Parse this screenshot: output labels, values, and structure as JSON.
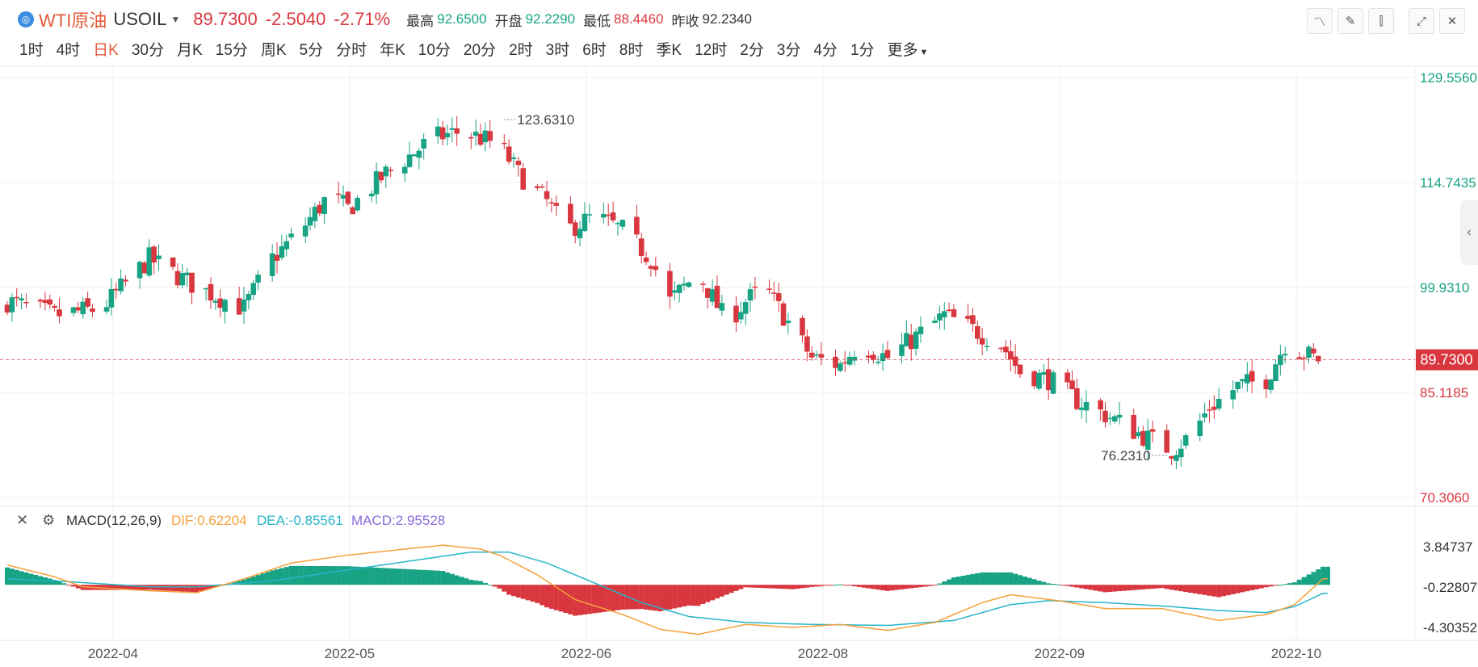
{
  "header": {
    "logo_icon": "globe-icon",
    "name": "WTI原油",
    "code": "USOIL",
    "last": "89.7300",
    "change": "-2.5040",
    "change_pct": "-2.71%",
    "high_label": "最高",
    "high": "92.6500",
    "open_label": "开盘",
    "open": "92.2290",
    "low_label": "最低",
    "low": "88.4460",
    "prev_label": "昨收",
    "prev": "92.2340"
  },
  "periods": [
    "1时",
    "4时",
    "日K",
    "30分",
    "月K",
    "15分",
    "周K",
    "5分",
    "分时",
    "年K",
    "10分",
    "20分",
    "2时",
    "3时",
    "6时",
    "8时",
    "季K",
    "12时",
    "2分",
    "3分",
    "4分",
    "1分"
  ],
  "active_period": "日K",
  "more_label": "更多",
  "tools": [
    "indicator-icon",
    "draw-icon",
    "candle-style-icon",
    "expand-icon",
    "close-icon"
  ],
  "colors": {
    "up": "#17a384",
    "down": "#d9373f",
    "dif": "#f5a13b",
    "dea": "#26b5c9",
    "macd_label": "#8a6cd8",
    "grid": "#f0f0f0"
  },
  "chart_data": [
    {
      "type": "candlestick",
      "title": "WTI原油 USOIL 日K",
      "y_ticks": [
        "129.5560",
        "114.7435",
        "99.9310",
        "85.1185",
        "70.3060"
      ],
      "ylim": [
        70.306,
        129.556
      ],
      "last_price": 89.73,
      "last_price_label": "89.7300",
      "annotations": [
        {
          "text": "123.6310",
          "index": 105,
          "value": 123.631
        },
        {
          "text": "76.2310",
          "index": 245,
          "value": 76.231
        }
      ],
      "x_tick_labels": [
        {
          "label": "2022-04",
          "index": 22
        },
        {
          "label": "2022-05",
          "index": 72
        },
        {
          "label": "2022-06",
          "index": 122
        },
        {
          "label": "2022-08",
          "index": 172
        },
        {
          "label": "2022-09",
          "index": 222
        },
        {
          "label": "2022-10",
          "index": 272
        }
      ],
      "close_path": [
        [
          0,
          98
        ],
        [
          10,
          96
        ],
        [
          20,
          97
        ],
        [
          30,
          104
        ],
        [
          40,
          100
        ],
        [
          50,
          97
        ],
        [
          56,
          104
        ],
        [
          62,
          108
        ],
        [
          68,
          113
        ],
        [
          72,
          111
        ],
        [
          80,
          116
        ],
        [
          86,
          119
        ],
        [
          90,
          121
        ],
        [
          96,
          122
        ],
        [
          100,
          121
        ],
        [
          104,
          120
        ],
        [
          108,
          116
        ],
        [
          114,
          112
        ],
        [
          118,
          108
        ],
        [
          124,
          110
        ],
        [
          130,
          108
        ],
        [
          136,
          104
        ],
        [
          140,
          98
        ],
        [
          146,
          102
        ],
        [
          152,
          95
        ],
        [
          156,
          98
        ],
        [
          160,
          100
        ],
        [
          166,
          94
        ],
        [
          170,
          90
        ],
        [
          176,
          89
        ],
        [
          180,
          92
        ],
        [
          186,
          90
        ],
        [
          192,
          93
        ],
        [
          198,
          96
        ],
        [
          204,
          94
        ],
        [
          210,
          92
        ],
        [
          214,
          88
        ],
        [
          220,
          87
        ],
        [
          226,
          84
        ],
        [
          232,
          82
        ],
        [
          240,
          79
        ],
        [
          246,
          77
        ],
        [
          250,
          79
        ],
        [
          254,
          83
        ],
        [
          260,
          86
        ],
        [
          266,
          87
        ],
        [
          270,
          92
        ],
        [
          276,
          90
        ],
        [
          278,
          89.73
        ]
      ]
    },
    {
      "type": "macd",
      "title": "MACD(12,26,9)",
      "dif_label": "DIF:0.62204",
      "dea_label": "DEA:-0.85561",
      "macd_label": "MACD:2.95528",
      "y_ticks": [
        "3.84737",
        "-0.22807",
        "-4.30352"
      ],
      "ylim": [
        -4.30352,
        3.84737
      ],
      "dif_path": [
        [
          0,
          2.0
        ],
        [
          10,
          0.8
        ],
        [
          16,
          -0.2
        ],
        [
          30,
          -0.6
        ],
        [
          40,
          -0.8
        ],
        [
          50,
          0.6
        ],
        [
          60,
          2.2
        ],
        [
          72,
          3.0
        ],
        [
          84,
          3.6
        ],
        [
          92,
          4.0
        ],
        [
          100,
          3.6
        ],
        [
          104,
          3.0
        ],
        [
          112,
          1.0
        ],
        [
          120,
          -1.5
        ],
        [
          130,
          -3.0
        ],
        [
          138,
          -4.5
        ],
        [
          146,
          -5.0
        ],
        [
          156,
          -4.0
        ],
        [
          166,
          -4.3
        ],
        [
          176,
          -4.0
        ],
        [
          186,
          -4.6
        ],
        [
          196,
          -3.8
        ],
        [
          206,
          -1.8
        ],
        [
          212,
          -1.0
        ],
        [
          222,
          -1.6
        ],
        [
          232,
          -2.4
        ],
        [
          244,
          -2.4
        ],
        [
          250,
          -3.0
        ],
        [
          256,
          -3.6
        ],
        [
          266,
          -3.0
        ],
        [
          272,
          -2.0
        ],
        [
          278,
          0.6
        ]
      ],
      "dea_path": [
        [
          0,
          0.6
        ],
        [
          10,
          0.4
        ],
        [
          20,
          0.1
        ],
        [
          30,
          -0.2
        ],
        [
          40,
          -0.2
        ],
        [
          56,
          0.4
        ],
        [
          72,
          1.5
        ],
        [
          88,
          2.6
        ],
        [
          98,
          3.3
        ],
        [
          106,
          3.3
        ],
        [
          114,
          2.2
        ],
        [
          124,
          0.2
        ],
        [
          134,
          -1.8
        ],
        [
          144,
          -3.2
        ],
        [
          156,
          -3.8
        ],
        [
          170,
          -4.0
        ],
        [
          186,
          -4.1
        ],
        [
          200,
          -3.6
        ],
        [
          212,
          -2.0
        ],
        [
          220,
          -1.6
        ],
        [
          232,
          -1.8
        ],
        [
          246,
          -2.2
        ],
        [
          256,
          -2.6
        ],
        [
          266,
          -2.8
        ],
        [
          272,
          -2.2
        ],
        [
          278,
          -0.86
        ]
      ]
    }
  ]
}
